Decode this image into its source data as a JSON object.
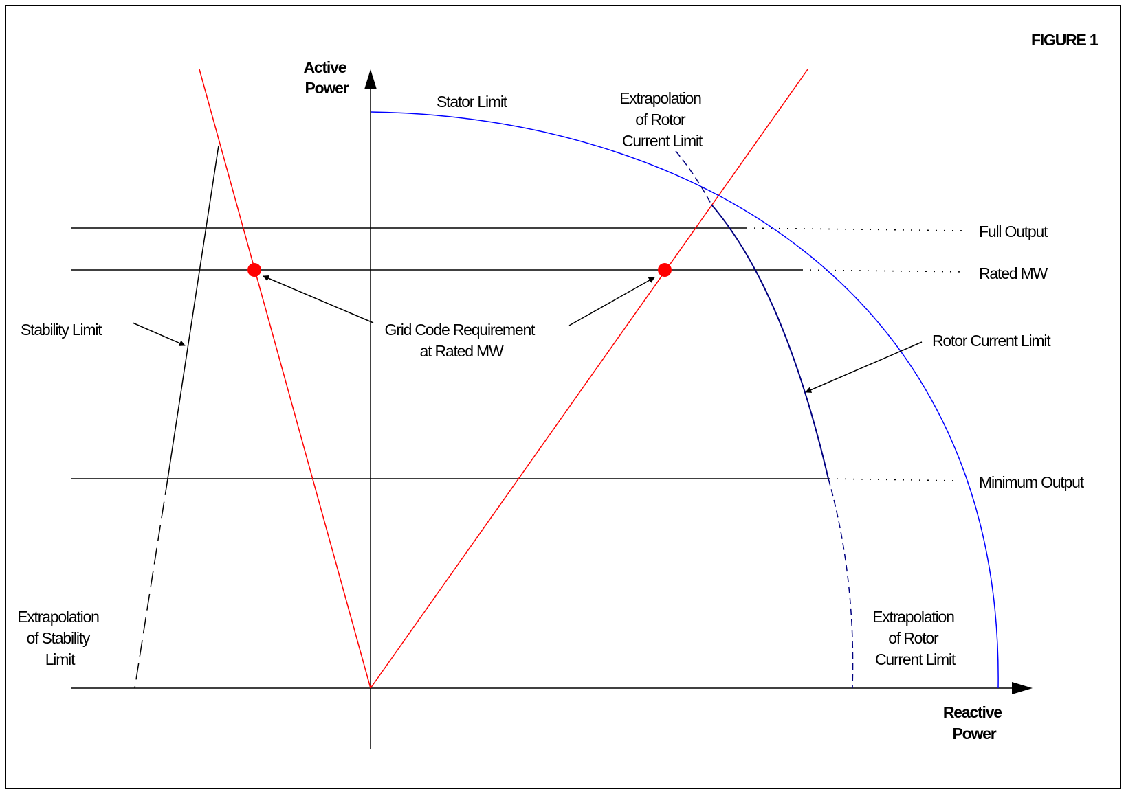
{
  "figure_label": "FIGURE 1",
  "axes": {
    "y_label": [
      "Active",
      "Power"
    ],
    "x_label": [
      "Reactive",
      "Power"
    ]
  },
  "curves": {
    "stator_limit": "Stator Limit",
    "rotor_current_limit": "Rotor Current Limit",
    "extrapolation_rotor_top": [
      "Extrapolation",
      "of Rotor",
      "Current Limit"
    ],
    "extrapolation_rotor_bottom": [
      "Extrapolation",
      "of Rotor",
      "Current Limit"
    ],
    "stability_limit": "Stability Limit",
    "extrapolation_stability": [
      "Extrapolation",
      "of Stability",
      "Limit"
    ]
  },
  "levels": {
    "full_output": "Full Output",
    "rated_mw": "Rated MW",
    "minimum_output": "Minimum Output"
  },
  "grid_code": [
    "Grid Code Requirement",
    "at Rated MW"
  ],
  "colors": {
    "frame": "#000000",
    "stator": "#0000ff",
    "rotor": "#000080",
    "grid_code_line": "#ff0000",
    "grid_code_point": "#ff0000"
  }
}
